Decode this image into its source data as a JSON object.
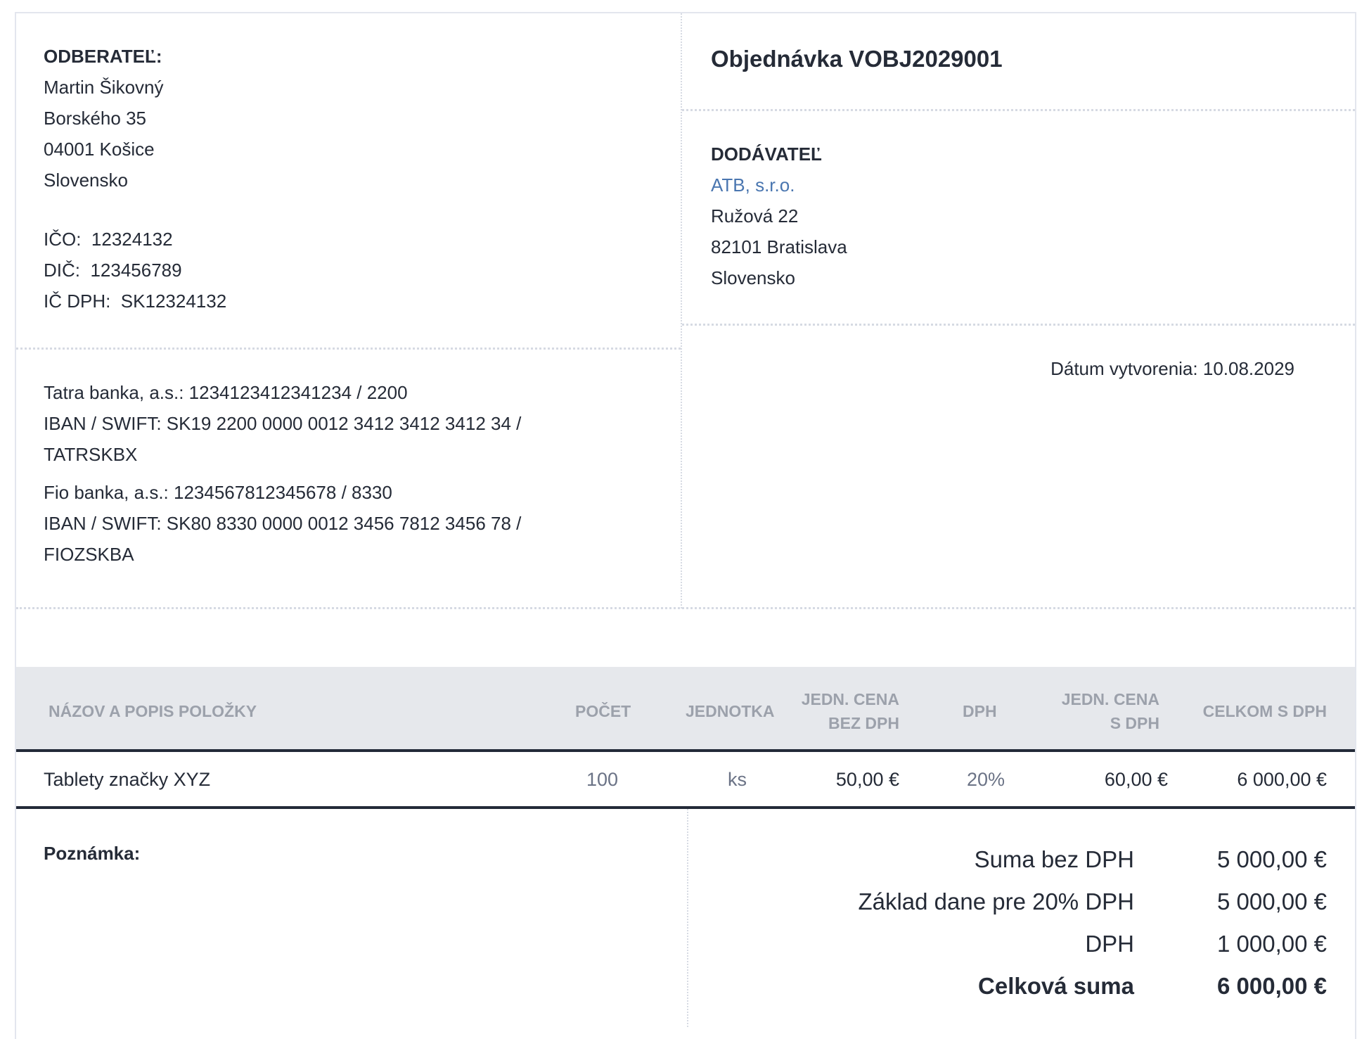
{
  "customer": {
    "heading": "ODBERATEĽ:",
    "name": "Martin Šikovný",
    "street": "Borského 35",
    "city": "04001 Košice",
    "country": "Slovensko",
    "ico_label": "IČO:",
    "ico": "12324132",
    "dic_label": "DIČ:",
    "dic": "123456789",
    "icdph_label": "IČ DPH:",
    "icdph": "SK12324132"
  },
  "banks": [
    {
      "line1": "Tatra banka, a.s.: 1234123412341234 / 2200",
      "line2": "IBAN / SWIFT: SK19 2200 0000 0012 3412 3412 3412 34 /",
      "line3": "TATRSKBX"
    },
    {
      "line1": "Fio banka, a.s.: 1234567812345678 / 8330",
      "line2": "IBAN / SWIFT: SK80 8330 0000 0012 3456 7812 3456 78 /",
      "line3": "FIOZSKBA"
    }
  ],
  "order": {
    "title": "Objednávka VOBJ2029001",
    "date_label": "Dátum vytvorenia:",
    "date": "10.08.2029"
  },
  "supplier": {
    "heading": "DODÁVATEĽ",
    "name": "ATB, s.r.o.",
    "street": "Ružová 22",
    "city": "82101 Bratislava",
    "country": "Slovensko"
  },
  "table": {
    "headers": [
      "NÁZOV A POPIS POLOŽKY",
      "POČET",
      "JEDNOTKA",
      "JEDN. CENA",
      "BEZ DPH",
      "DPH",
      "JEDN. CENA",
      "S DPH",
      "CELKOM S DPH"
    ],
    "rows": [
      {
        "name": "Tablety značky XYZ",
        "qty": "100",
        "unit": "ks",
        "unit_price": "50,00 €",
        "vat": "20%",
        "unit_price_vat": "60,00 €",
        "total": "6 000,00 €"
      }
    ]
  },
  "note_label": "Poznámka:",
  "totals": [
    {
      "label": "Suma bez DPH",
      "value": "5 000,00 €"
    },
    {
      "label": "Základ dane pre 20% DPH",
      "value": "5 000,00 €"
    },
    {
      "label": "DPH",
      "value": "1 000,00 €"
    },
    {
      "label": "Celková suma",
      "value": "6 000,00 €"
    }
  ],
  "colors": {
    "link": "#4a76b0",
    "text": "#252b37",
    "header_bg": "#e6e8ec",
    "header_text": "#9ca1ab",
    "muted": "#6b7386"
  }
}
